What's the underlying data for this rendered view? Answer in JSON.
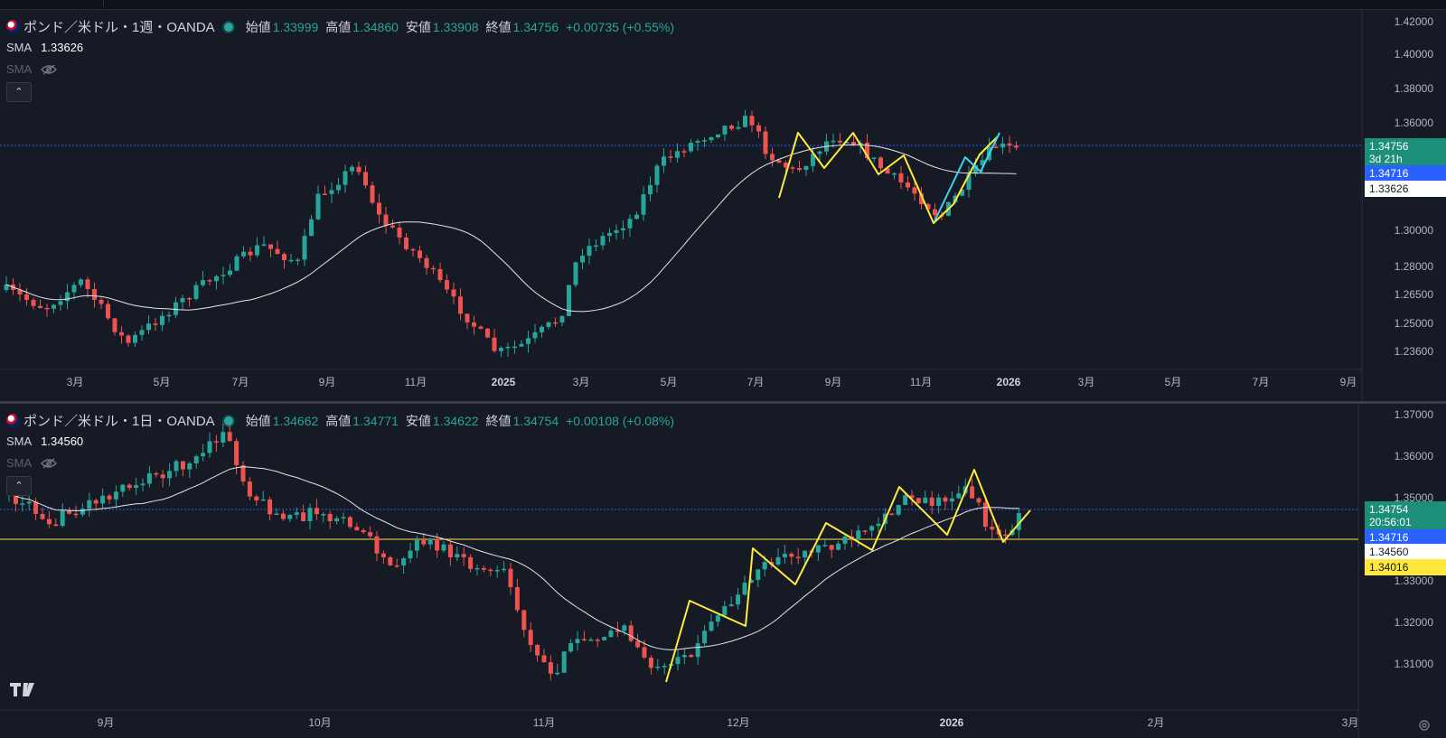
{
  "weekly": {
    "symbol": "ポンド／米ドル・1週・OANDA",
    "open_label": "始値",
    "open": "1.33999",
    "high_label": "高値",
    "high": "1.34860",
    "low_label": "安値",
    "low": "1.33908",
    "close_label": "終値",
    "close": "1.34756",
    "change": "+0.00735 (+0.55%)",
    "sma1_label": "SMA",
    "sma1_value": "1.33626",
    "sma2_label": "SMA",
    "price_axis": [
      "1.42000",
      "1.40000",
      "1.38000",
      "1.36000",
      "1.30000",
      "1.28000",
      "1.26500",
      "1.25000",
      "1.23600"
    ],
    "time_axis": [
      "3月",
      "5月",
      "7月",
      "9月",
      "11月",
      "2025",
      "3月",
      "5月",
      "7月",
      "9月",
      "11月",
      "2026",
      "3月",
      "5月",
      "7月",
      "9月"
    ],
    "tags": {
      "last_price": "1.34756",
      "countdown": "3d 21h",
      "blue_line": "1.34716",
      "sma": "1.33626"
    }
  },
  "daily": {
    "symbol": "ポンド／米ドル・1日・OANDA",
    "open_label": "始値",
    "open": "1.34662",
    "high_label": "高値",
    "high": "1.34771",
    "low_label": "安値",
    "low": "1.34622",
    "close_label": "終値",
    "close": "1.34754",
    "change": "+0.00108 (+0.08%)",
    "sma1_label": "SMA",
    "sma1_value": "1.34560",
    "sma2_label": "SMA",
    "price_axis": [
      "1.37000",
      "1.36000",
      "1.35000",
      "1.33000",
      "1.32000",
      "1.31000"
    ],
    "time_axis": [
      "9月",
      "10月",
      "11月",
      "12月",
      "2026",
      "2月",
      "3月"
    ],
    "tags": {
      "last_price": "1.34754",
      "countdown": "20:56:01",
      "blue_line": "1.34716",
      "sma": "1.34560",
      "yellow_line": "1.34016"
    }
  },
  "colors": {
    "up": "#26a69a",
    "down": "#ef5350",
    "bg": "#161a25",
    "blue_line": "#2962ff",
    "yellow_line": "#ffeb3b",
    "cyan_line": "#38d8f0"
  },
  "icons": [
    "uk-us-flag-icon",
    "status-dot-icon",
    "eye-hidden-icon",
    "chevron-up-icon",
    "tradingview-logo-icon",
    "gear-icon"
  ]
}
